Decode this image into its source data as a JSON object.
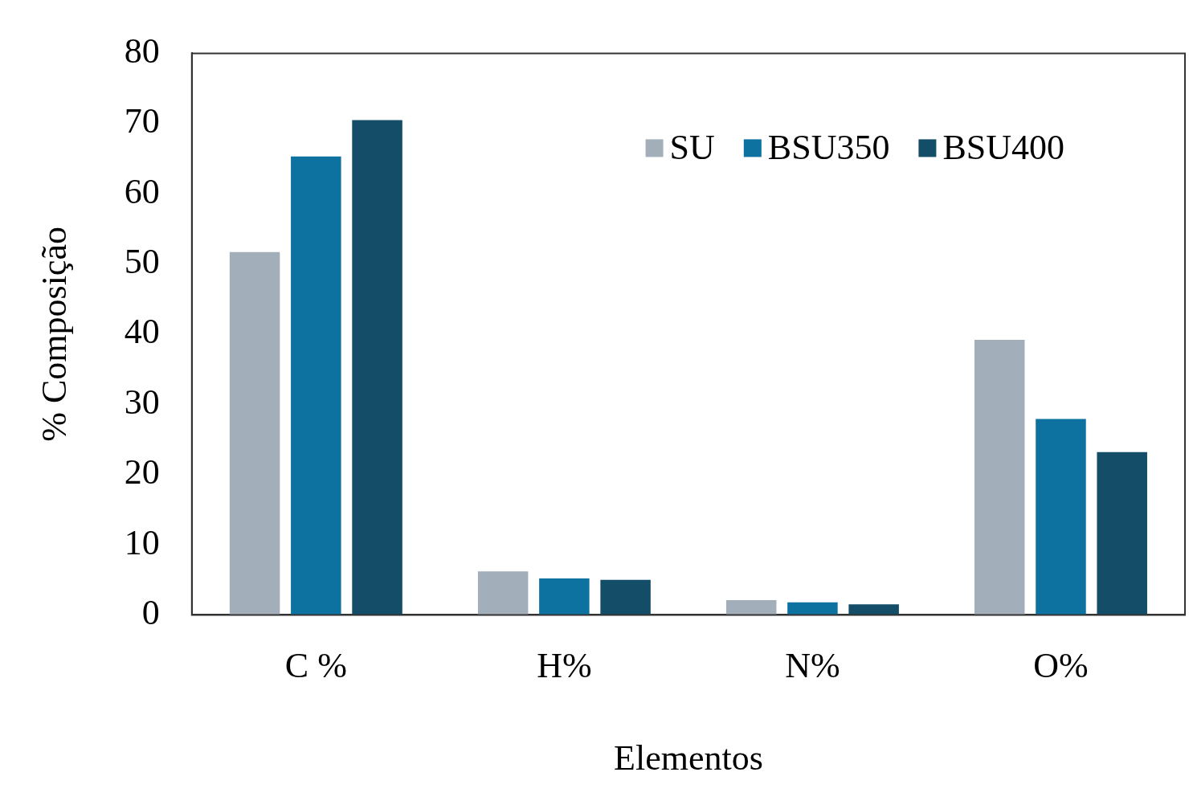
{
  "chart_data": {
    "type": "bar",
    "xlabel": "Elementos",
    "ylabel": "% Composição",
    "categories": [
      "C %",
      "H%",
      "N%",
      "O%"
    ],
    "series": [
      {
        "name": "SU",
        "color": "#a2aeb9",
        "values": [
          51.7,
          6.2,
          2.1,
          39.2
        ]
      },
      {
        "name": "BSU350",
        "color": "#0e72a0",
        "values": [
          65.3,
          5.2,
          1.8,
          27.9
        ]
      },
      {
        "name": "BSU400",
        "color": "#134d68",
        "values": [
          70.5,
          5.0,
          1.5,
          23.2
        ]
      }
    ],
    "ylim": [
      0,
      80
    ],
    "yticks": [
      0,
      10,
      20,
      30,
      40,
      50,
      60,
      70,
      80
    ],
    "grid": false,
    "legend": "top right"
  }
}
